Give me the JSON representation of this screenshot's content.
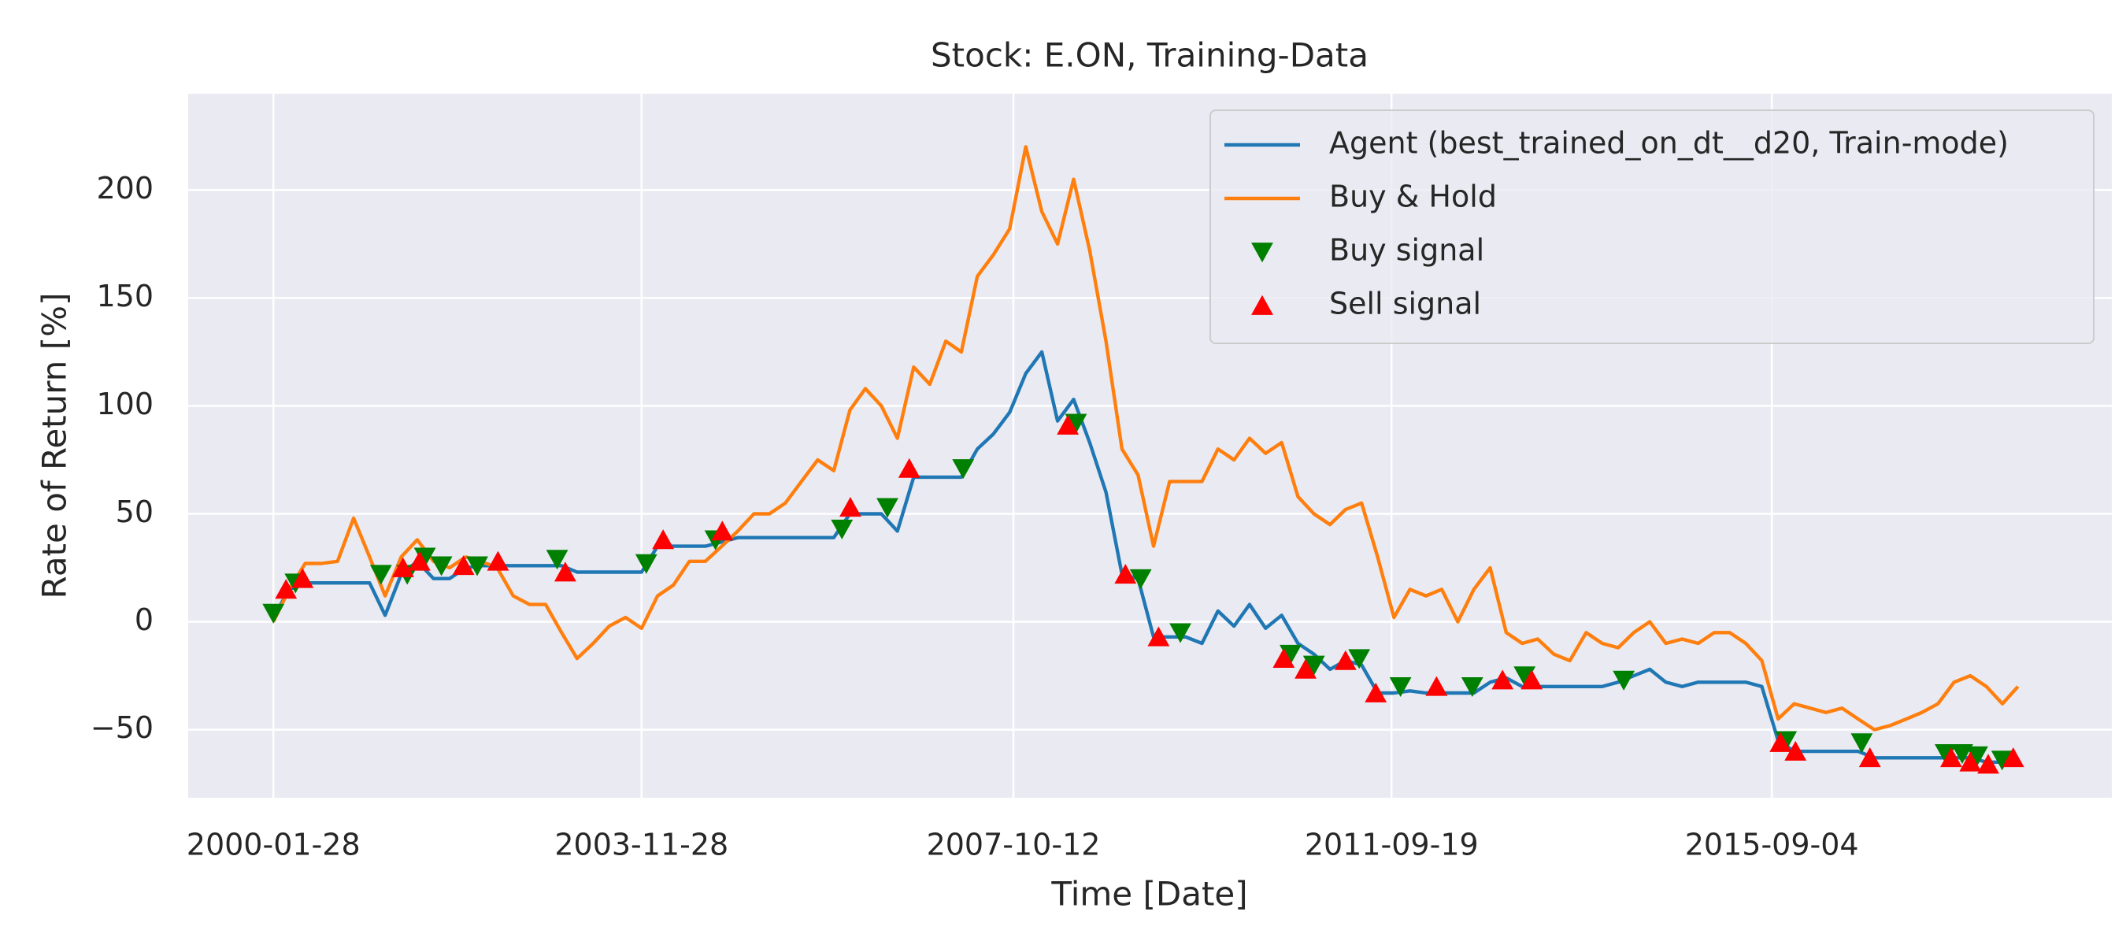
{
  "chart_data": {
    "type": "line",
    "title": "Stock: E.ON, Training-Data",
    "xlabel": "Time [Date]",
    "ylabel": "Rate of Return [%]",
    "background": "#eaeaf2",
    "grid": true,
    "legend": "upper right",
    "xlim": [
      "1999-03-10",
      "2019-03-20"
    ],
    "xticks": [
      "2000-01-28",
      "2003-11-28",
      "2007-10-12",
      "2011-09-19",
      "2015-09-04"
    ],
    "ylim": [
      -81.5,
      244.6
    ],
    "yticks": [
      {
        "value": -50,
        "label": "−50"
      },
      0,
      50,
      100,
      150,
      200
    ],
    "x": [
      "2000-01-28",
      "2000-03-28",
      "2000-05-28",
      "2000-07-28",
      "2000-09-28",
      "2000-11-28",
      "2001-01-28",
      "2001-03-28",
      "2001-05-28",
      "2001-07-28",
      "2001-09-28",
      "2001-11-28",
      "2002-01-28",
      "2002-03-28",
      "2002-05-28",
      "2002-07-28",
      "2002-09-28",
      "2002-11-28",
      "2003-01-28",
      "2003-03-28",
      "2003-05-28",
      "2003-07-28",
      "2003-09-28",
      "2003-11-28",
      "2004-01-28",
      "2004-03-28",
      "2004-05-28",
      "2004-07-28",
      "2004-09-28",
      "2004-11-28",
      "2005-01-28",
      "2005-03-28",
      "2005-05-28",
      "2005-07-28",
      "2005-09-28",
      "2005-11-28",
      "2006-01-28",
      "2006-03-28",
      "2006-05-28",
      "2006-07-28",
      "2006-09-28",
      "2006-11-28",
      "2007-01-28",
      "2007-03-28",
      "2007-05-28",
      "2007-07-28",
      "2007-09-28",
      "2007-11-28",
      "2008-01-28",
      "2008-03-28",
      "2008-05-28",
      "2008-07-28",
      "2008-09-28",
      "2008-11-28",
      "2009-01-28",
      "2009-03-28",
      "2009-05-28",
      "2009-07-28",
      "2009-09-28",
      "2009-11-28",
      "2010-01-28",
      "2010-03-28",
      "2010-05-28",
      "2010-07-28",
      "2010-09-28",
      "2010-11-28",
      "2011-01-28",
      "2011-03-28",
      "2011-05-28",
      "2011-07-28",
      "2011-09-28",
      "2011-11-28",
      "2012-01-28",
      "2012-03-28",
      "2012-05-28",
      "2012-07-28",
      "2012-09-28",
      "2012-11-28",
      "2013-01-28",
      "2013-03-28",
      "2013-05-28",
      "2013-07-28",
      "2013-09-28",
      "2013-11-28",
      "2014-01-28",
      "2014-03-28",
      "2014-05-28",
      "2014-07-28",
      "2014-09-28",
      "2014-11-28",
      "2015-01-28",
      "2015-03-28",
      "2015-05-28",
      "2015-07-28",
      "2015-09-28",
      "2015-11-28",
      "2016-01-28",
      "2016-03-28",
      "2016-05-28",
      "2016-07-28",
      "2016-09-28",
      "2016-11-28",
      "2017-01-28",
      "2017-03-28",
      "2017-05-28",
      "2017-07-28",
      "2017-09-28",
      "2017-11-28",
      "2018-01-28",
      "2018-03-28"
    ],
    "series": [
      {
        "name": "Agent (best_trained_on_dt__d20, Train-mode)",
        "type": "line",
        "color": "#1f77b4",
        "values": [
          2,
          15,
          18,
          18,
          18,
          18,
          18,
          3,
          22,
          28,
          20,
          20,
          25,
          26,
          26,
          26,
          26,
          26,
          26,
          23,
          23,
          23,
          23,
          23,
          35,
          35,
          35,
          35,
          37,
          39,
          39,
          39,
          39,
          39,
          39,
          39,
          50,
          50,
          50,
          42,
          67,
          67,
          67,
          67,
          80,
          87,
          97,
          115,
          125,
          93,
          103,
          83,
          60,
          22,
          20,
          -7,
          -7,
          -7,
          -10,
          5,
          -2,
          8,
          -3,
          3,
          -10,
          -15,
          -22,
          -18,
          -20,
          -33,
          -33,
          -32,
          -33,
          -33,
          -33,
          -33,
          -28,
          -26,
          -30,
          -30,
          -30,
          -30,
          -30,
          -30,
          -28,
          -25,
          -22,
          -28,
          -30,
          -28,
          -28,
          -28,
          -28,
          -30,
          -55,
          -60,
          -60,
          -60,
          -60,
          -60,
          -63,
          -63,
          -63,
          -63,
          -63,
          -63,
          -63,
          -65,
          -65,
          -64
        ]
      },
      {
        "name": "Buy & Hold",
        "type": "line",
        "color": "#ff7f0e",
        "values": [
          0,
          15,
          27,
          27,
          28,
          48,
          30,
          12,
          30,
          38,
          28,
          25,
          30,
          28,
          25,
          12,
          8,
          8,
          -5,
          -17,
          -10,
          -2,
          2,
          -3,
          12,
          17,
          28,
          28,
          35,
          42,
          50,
          50,
          55,
          65,
          75,
          70,
          98,
          108,
          100,
          85,
          118,
          110,
          130,
          125,
          160,
          170,
          182,
          220,
          190,
          175,
          205,
          172,
          130,
          80,
          68,
          35,
          65,
          65,
          65,
          80,
          75,
          85,
          78,
          83,
          58,
          50,
          45,
          52,
          55,
          30,
          2,
          15,
          12,
          15,
          0,
          15,
          25,
          -5,
          -10,
          -8,
          -15,
          -18,
          -5,
          -10,
          -12,
          -5,
          0,
          -10,
          -8,
          -10,
          -5,
          -5,
          -10,
          -18,
          -45,
          -38,
          -40,
          -42,
          -40,
          -45,
          -50,
          -48,
          -45,
          -42,
          -38,
          -28,
          -25,
          -30,
          -38,
          -30
        ]
      },
      {
        "name": "Buy signal",
        "type": "scatter",
        "marker": "triangle-down",
        "color": "#008000",
        "x": [
          "2000-01-28",
          "2000-04-21",
          "2001-03-12",
          "2001-06-20",
          "2001-08-26",
          "2001-10-28",
          "2002-03-13",
          "2003-01-11",
          "2003-12-16",
          "2004-09-04",
          "2005-12-29",
          "2006-06-20",
          "2007-04-04",
          "2008-06-06",
          "2009-02-07",
          "2009-07-08",
          "2010-08-31",
          "2010-11-28",
          "2011-05-19",
          "2011-10-23",
          "2012-07-22",
          "2013-02-06",
          "2014-02-18",
          "2015-10-28",
          "2016-08-11",
          "2017-06-26",
          "2017-08-28",
          "2017-10-24",
          "2018-01-27"
        ],
        "values": [
          4,
          18,
          22,
          22,
          30,
          26,
          26,
          29,
          27,
          38,
          43,
          53,
          71,
          92,
          20,
          -5,
          -15,
          -20,
          -17,
          -30,
          -30,
          -25,
          -27,
          -55,
          -56,
          -61,
          -61,
          -62,
          -64
        ]
      },
      {
        "name": "Sell signal",
        "type": "scatter",
        "marker": "triangle-up",
        "color": "#ff0000",
        "x": [
          "2000-03-16",
          "2000-05-18",
          "2001-06-04",
          "2001-08-06",
          "2002-01-20",
          "2002-05-31",
          "2003-02-11",
          "2004-02-18",
          "2004-09-30",
          "2006-01-30",
          "2006-09-11",
          "2008-05-06",
          "2008-12-11",
          "2009-04-16",
          "2010-08-05",
          "2010-10-27",
          "2011-03-28",
          "2011-07-21",
          "2012-03-08",
          "2012-11-14",
          "2013-03-05",
          "2015-10-07",
          "2015-12-03",
          "2016-09-11",
          "2017-07-17",
          "2017-09-28",
          "2017-12-05",
          "2018-03-10"
        ],
        "values": [
          15,
          20,
          25,
          28,
          26,
          28,
          23,
          38,
          42,
          53,
          71,
          91,
          22,
          -7,
          -17,
          -22,
          -18,
          -33,
          -30,
          -27,
          -27,
          -56,
          -60,
          -63,
          -63,
          -65,
          -66,
          -63
        ]
      }
    ]
  }
}
